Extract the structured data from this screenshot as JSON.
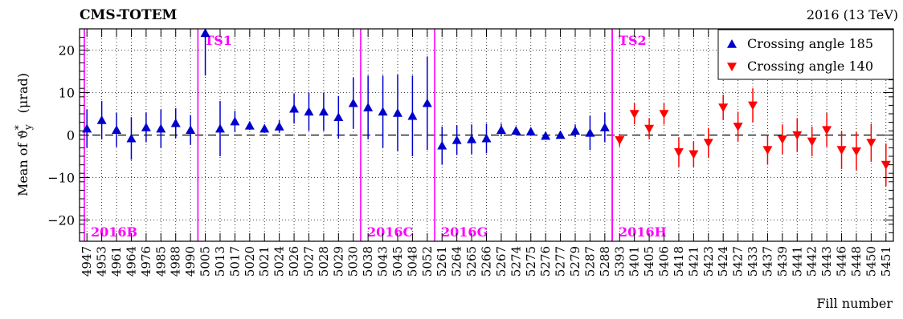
{
  "header": {
    "experiment": "CMS-TOTEM",
    "run_label": "2016 (13 TeV)"
  },
  "chart_data": {
    "type": "scatter",
    "xlabel": "Fill number",
    "ylabel": "Mean of ϑ*_y   (μrad)",
    "ylabel_main": "Mean of ϑ",
    "ylabel_sup": "*",
    "ylabel_sub": "y",
    "ylabel_unit": "(μrad)",
    "ylim": [
      -25,
      25
    ],
    "yticks": [
      -20,
      -10,
      0,
      10,
      20
    ],
    "grid": true,
    "zero_line": "dashed",
    "legend_position": "top-right",
    "categories": [
      "4947",
      "4953",
      "4961",
      "4964",
      "4976",
      "4985",
      "4988",
      "4990",
      "5005",
      "5013",
      "5017",
      "5020",
      "5021",
      "5024",
      "5026",
      "5027",
      "5028",
      "5029",
      "5030",
      "5038",
      "5043",
      "5045",
      "5048",
      "5052",
      "5261",
      "5264",
      "5265",
      "5266",
      "5267",
      "5274",
      "5275",
      "5276",
      "5277",
      "5279",
      "5287",
      "5288",
      "5393",
      "5401",
      "5405",
      "5406",
      "5418",
      "5421",
      "5423",
      "5424",
      "5427",
      "5433",
      "5437",
      "5439",
      "5441",
      "5442",
      "5443",
      "5446",
      "5448",
      "5450",
      "5451"
    ],
    "series": [
      {
        "name": "Crossing angle 185",
        "color": "#0000cc",
        "marker": "triangle-up",
        "points": [
          {
            "x": "4947",
            "y": 1.5,
            "err": 4.5
          },
          {
            "x": "4953",
            "y": 3.5,
            "err": 4.5
          },
          {
            "x": "4961",
            "y": 1.2,
            "err": 4.0
          },
          {
            "x": "4964",
            "y": -0.8,
            "err": 5.0
          },
          {
            "x": "4976",
            "y": 1.8,
            "err": 3.5
          },
          {
            "x": "4985",
            "y": 1.5,
            "err": 4.5
          },
          {
            "x": "4988",
            "y": 2.8,
            "err": 3.5
          },
          {
            "x": "4990",
            "y": 1.2,
            "err": 3.5
          },
          {
            "x": "5005",
            "y": 24.0,
            "err": 10.0
          },
          {
            "x": "5013",
            "y": 1.5,
            "err": 6.5
          },
          {
            "x": "5017",
            "y": 3.2,
            "err": 2.5
          },
          {
            "x": "5020",
            "y": 2.2,
            "err": 1.0
          },
          {
            "x": "5021",
            "y": 1.5,
            "err": 1.0
          },
          {
            "x": "5024",
            "y": 2.0,
            "err": 1.5
          },
          {
            "x": "5026",
            "y": 6.2,
            "err": 3.5
          },
          {
            "x": "5027",
            "y": 5.5,
            "err": 4.5
          },
          {
            "x": "5028",
            "y": 5.5,
            "err": 4.5
          },
          {
            "x": "5029",
            "y": 4.2,
            "err": 5.0
          },
          {
            "x": "5030",
            "y": 7.5,
            "err": 6.0
          },
          {
            "x": "5038",
            "y": 6.5,
            "err": 7.5
          },
          {
            "x": "5043",
            "y": 5.5,
            "err": 8.5
          },
          {
            "x": "5045",
            "y": 5.2,
            "err": 9.0
          },
          {
            "x": "5048",
            "y": 4.5,
            "err": 9.5
          },
          {
            "x": "5052",
            "y": 7.5,
            "err": 11.0
          },
          {
            "x": "5261",
            "y": -2.5,
            "err": 4.5
          },
          {
            "x": "5264",
            "y": -1.2,
            "err": 3.5
          },
          {
            "x": "5265",
            "y": -1.0,
            "err": 3.5
          },
          {
            "x": "5266",
            "y": -0.8,
            "err": 3.5
          },
          {
            "x": "5267",
            "y": 1.2,
            "err": 1.5
          },
          {
            "x": "5274",
            "y": 1.0,
            "err": 1.0
          },
          {
            "x": "5275",
            "y": 0.8,
            "err": 1.0
          },
          {
            "x": "5276",
            "y": -0.2,
            "err": 0.8
          },
          {
            "x": "5277",
            "y": 0.0,
            "err": 0.8
          },
          {
            "x": "5279",
            "y": 1.0,
            "err": 1.5
          },
          {
            "x": "5287",
            "y": 0.5,
            "err": 4.0
          },
          {
            "x": "5288",
            "y": 1.8,
            "err": 3.5
          }
        ]
      },
      {
        "name": "Crossing angle 140",
        "color": "#ff0000",
        "marker": "triangle-down",
        "points": [
          {
            "x": "5393",
            "y": -1.2,
            "err": 1.5
          },
          {
            "x": "5401",
            "y": 5.0,
            "err": 2.5
          },
          {
            "x": "5405",
            "y": 1.5,
            "err": 2.5
          },
          {
            "x": "5406",
            "y": 5.0,
            "err": 2.5
          },
          {
            "x": "5418",
            "y": -4.0,
            "err": 3.5
          },
          {
            "x": "5421",
            "y": -4.5,
            "err": 3.0
          },
          {
            "x": "5423",
            "y": -1.8,
            "err": 3.5
          },
          {
            "x": "5424",
            "y": 6.5,
            "err": 3.0
          },
          {
            "x": "5427",
            "y": 2.0,
            "err": 3.5
          },
          {
            "x": "5433",
            "y": 7.0,
            "err": 4.0
          },
          {
            "x": "5437",
            "y": -3.5,
            "err": 3.5
          },
          {
            "x": "5439",
            "y": -1.0,
            "err": 3.5
          },
          {
            "x": "5441",
            "y": 0.0,
            "err": 4.0
          },
          {
            "x": "5442",
            "y": -1.5,
            "err": 3.5
          },
          {
            "x": "5443",
            "y": 1.2,
            "err": 4.0
          },
          {
            "x": "5446",
            "y": -3.5,
            "err": 4.5
          },
          {
            "x": "5448",
            "y": -3.8,
            "err": 4.5
          },
          {
            "x": "5450",
            "y": -1.8,
            "err": 4.5
          },
          {
            "x": "5451",
            "y": -7.0,
            "err": 5.0
          }
        ]
      }
    ],
    "period_boundaries": [
      {
        "between": [
          "4947",
          "4947"
        ],
        "edge": "left",
        "label": "2016B",
        "label_pos": "bottom"
      },
      {
        "between": [
          "4990",
          "5005"
        ],
        "label": "TS1",
        "label_pos": "top"
      },
      {
        "between": [
          "5030",
          "5038"
        ],
        "label": "2016C",
        "label_pos": "bottom"
      },
      {
        "between": [
          "5052",
          "5261"
        ],
        "label": "2016G",
        "label_pos": "bottom"
      },
      {
        "between": [
          "5288",
          "5393"
        ],
        "label": "2016H",
        "label_pos": "bottom"
      },
      {
        "between": [
          "5288",
          "5393"
        ],
        "label": "TS2",
        "label_pos": "top"
      }
    ],
    "boundary_color": "#ff00ff"
  }
}
